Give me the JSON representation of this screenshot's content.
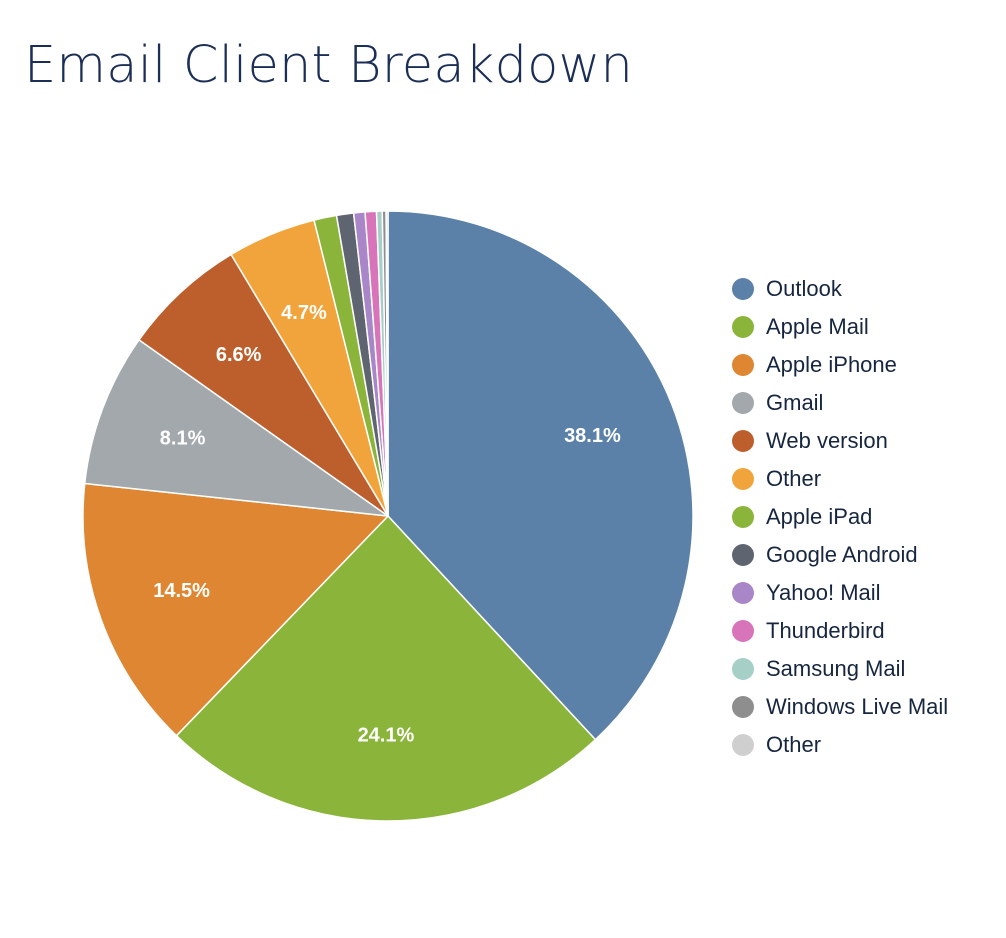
{
  "chart_data": {
    "type": "pie",
    "title": "Email Client Breakdown",
    "slices": [
      {
        "label": "Outlook",
        "value": 38.1,
        "color": "#5b81a8",
        "display": "38.1%"
      },
      {
        "label": "Apple Mail",
        "value": 24.1,
        "color": "#8ab53a",
        "display": "24.1%"
      },
      {
        "label": "Apple iPhone",
        "value": 14.5,
        "color": "#de8631",
        "display": "14.5%"
      },
      {
        "label": "Gmail",
        "value": 8.1,
        "color": "#a3a8ad",
        "display": "8.1%"
      },
      {
        "label": "Web version",
        "value": 6.6,
        "color": "#bd5f2c",
        "display": "6.6%"
      },
      {
        "label": "Other",
        "value": 4.7,
        "color": "#f2a43c",
        "display": "4.7%"
      },
      {
        "label": "Apple iPad",
        "value": 1.2,
        "color": "#8ab53a",
        "display": ""
      },
      {
        "label": "Google Android",
        "value": 0.9,
        "color": "#5e6571",
        "display": ""
      },
      {
        "label": "Yahoo! Mail",
        "value": 0.6,
        "color": "#a986c7",
        "display": ""
      },
      {
        "label": "Thunderbird",
        "value": 0.6,
        "color": "#d874ba",
        "display": ""
      },
      {
        "label": "Samsung Mail",
        "value": 0.3,
        "color": "#a6cfc7",
        "display": ""
      },
      {
        "label": "Windows Live Mail",
        "value": 0.2,
        "color": "#8e8e8e",
        "display": ""
      },
      {
        "label": "Other",
        "value": 0.1,
        "color": "#cfcfcf",
        "display": ""
      }
    ],
    "legend_position": "right"
  }
}
